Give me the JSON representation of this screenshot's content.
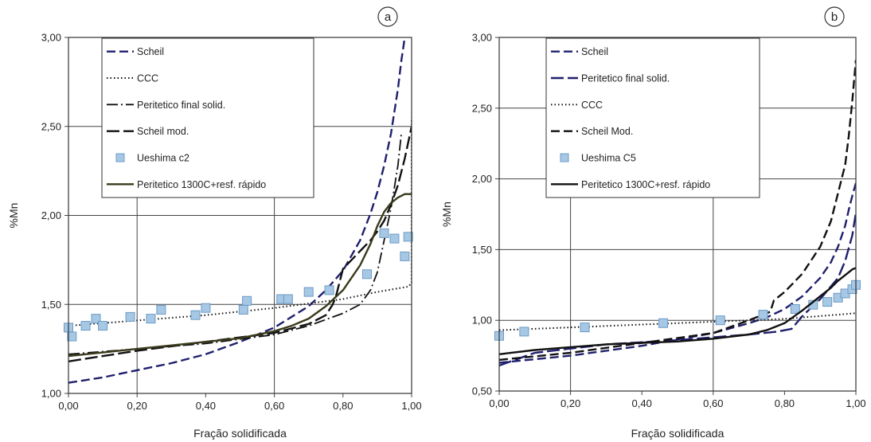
{
  "chart_data": [
    {
      "type": "line",
      "badge": "a",
      "xlabel": "Fração solidificada",
      "ylabel": "%Mn",
      "xlim": [
        0,
        1
      ],
      "ylim": [
        1.0,
        3.0
      ],
      "xticks": [
        "0,00",
        "0,20",
        "0,40",
        "0,60",
        "0,80",
        "1,00"
      ],
      "yticks": [
        "1,00",
        "1,50",
        "2,00",
        "2,50",
        "3,00"
      ],
      "grid": true,
      "legend_placement": "top-left",
      "series": [
        {
          "name": "Scheil",
          "style": "dash",
          "color": "#1f1f6e",
          "x": [
            0,
            0.1,
            0.2,
            0.3,
            0.4,
            0.5,
            0.6,
            0.7,
            0.75,
            0.8,
            0.85,
            0.88,
            0.9,
            0.92,
            0.94,
            0.96,
            0.97,
            0.98
          ],
          "y": [
            1.06,
            1.09,
            1.13,
            1.17,
            1.22,
            1.29,
            1.37,
            1.49,
            1.58,
            1.69,
            1.86,
            2.01,
            2.13,
            2.28,
            2.46,
            2.71,
            2.87,
            3.0
          ]
        },
        {
          "name": "CCC",
          "style": "dot",
          "color": "#111111",
          "x": [
            0,
            0.2,
            0.4,
            0.6,
            0.8,
            0.9,
            0.99,
            1.0,
            1.0
          ],
          "y": [
            1.38,
            1.41,
            1.44,
            1.48,
            1.53,
            1.57,
            1.6,
            1.62,
            2.55
          ]
        },
        {
          "name": "Peritetico final solid.",
          "style": "dashdot",
          "color": "#111111",
          "x": [
            0,
            0.2,
            0.4,
            0.6,
            0.7,
            0.8,
            0.85,
            0.85,
            0.88,
            0.9,
            0.92,
            0.94,
            0.96,
            0.97
          ],
          "y": [
            1.22,
            1.25,
            1.28,
            1.33,
            1.38,
            1.45,
            1.5,
            1.5,
            1.58,
            1.68,
            1.86,
            2.04,
            2.28,
            2.46
          ]
        },
        {
          "name": "Scheil mod.",
          "style": "longdash",
          "color": "#111111",
          "x": [
            0,
            0.2,
            0.4,
            0.6,
            0.7,
            0.75,
            0.77,
            0.78,
            0.8,
            0.85,
            0.88,
            0.9,
            0.92,
            0.94,
            0.96,
            0.98,
            1.0
          ],
          "y": [
            1.18,
            1.24,
            1.29,
            1.34,
            1.39,
            1.44,
            1.5,
            1.55,
            1.7,
            1.8,
            1.86,
            1.91,
            1.97,
            2.06,
            2.17,
            2.32,
            2.5
          ]
        },
        {
          "name": "Ueshima c2",
          "style": "marker",
          "color": "#a6c8e4",
          "x": [
            0,
            0.01,
            0.05,
            0.08,
            0.1,
            0.18,
            0.24,
            0.27,
            0.37,
            0.4,
            0.51,
            0.52,
            0.62,
            0.64,
            0.7,
            0.76,
            0.87,
            0.92,
            0.95,
            0.98,
            0.99
          ],
          "y": [
            1.37,
            1.32,
            1.38,
            1.42,
            1.38,
            1.43,
            1.42,
            1.47,
            1.44,
            1.48,
            1.47,
            1.52,
            1.53,
            1.53,
            1.57,
            1.58,
            1.67,
            1.9,
            1.87,
            1.77,
            1.88
          ]
        },
        {
          "name": "Peritetico 1300C+resf. rápido",
          "style": "solid",
          "color": "#3a3a1c",
          "x": [
            0,
            0.1,
            0.2,
            0.3,
            0.4,
            0.5,
            0.6,
            0.65,
            0.7,
            0.75,
            0.8,
            0.85,
            0.88,
            0.9,
            0.92,
            0.94,
            0.96,
            0.98,
            1.0
          ],
          "y": [
            1.21,
            1.23,
            1.25,
            1.27,
            1.29,
            1.31,
            1.35,
            1.38,
            1.42,
            1.49,
            1.58,
            1.72,
            1.84,
            1.94,
            2.02,
            2.07,
            2.1,
            2.12,
            2.12
          ]
        }
      ]
    },
    {
      "type": "line",
      "badge": "b",
      "xlabel": "Fração solidificada",
      "ylabel": "%Mn",
      "xlim": [
        0,
        1
      ],
      "ylim": [
        0.5,
        3.0
      ],
      "xticks": [
        "0,00",
        "0,20",
        "0,40",
        "0,60",
        "0,80",
        "1,00"
      ],
      "yticks": [
        "0,50",
        "1,00",
        "1,50",
        "2,00",
        "2,50",
        "3,00"
      ],
      "grid": true,
      "legend_placement": "top-left",
      "series": [
        {
          "name": "Scheil",
          "style": "dash",
          "color": "#1f1f6e",
          "x": [
            0,
            0.2,
            0.4,
            0.6,
            0.7,
            0.75,
            0.8,
            0.85,
            0.9,
            0.93,
            0.95,
            0.97,
            0.98,
            0.99,
            1.0
          ],
          "y": [
            0.7,
            0.75,
            0.82,
            0.91,
            0.98,
            1.02,
            1.08,
            1.17,
            1.3,
            1.41,
            1.52,
            1.67,
            1.78,
            1.88,
            1.97
          ]
        },
        {
          "name": "Peritetico final solid.",
          "style": "longdash",
          "color": "#1f1f6e",
          "x": [
            0,
            0.1,
            0.3,
            0.5,
            0.7,
            0.78,
            0.82,
            0.85,
            0.9,
            0.95,
            0.97,
            0.99,
            1.0
          ],
          "y": [
            0.68,
            0.77,
            0.83,
            0.86,
            0.9,
            0.92,
            0.94,
            1.03,
            1.15,
            1.3,
            1.42,
            1.6,
            1.76
          ]
        },
        {
          "name": "CCC",
          "style": "dot",
          "color": "#111111",
          "x": [
            0,
            0.2,
            0.4,
            0.6,
            0.8,
            1.0
          ],
          "y": [
            0.93,
            0.95,
            0.97,
            0.99,
            1.01,
            1.05
          ]
        },
        {
          "name": "Scheil Mod.",
          "style": "dash",
          "color": "#111111",
          "x": [
            0,
            0.2,
            0.4,
            0.6,
            0.7,
            0.76,
            0.77,
            0.8,
            0.85,
            0.9,
            0.93,
            0.95,
            0.97,
            0.98,
            0.99,
            1.0
          ],
          "y": [
            0.72,
            0.77,
            0.84,
            0.91,
            1.0,
            1.06,
            1.14,
            1.2,
            1.33,
            1.52,
            1.7,
            1.9,
            2.1,
            2.3,
            2.55,
            2.84
          ]
        },
        {
          "name": "Ueshima C5",
          "style": "marker",
          "color": "#a6c8e4",
          "x": [
            0,
            0.07,
            0.24,
            0.46,
            0.62,
            0.74,
            0.83,
            0.88,
            0.92,
            0.95,
            0.97,
            0.99,
            1.0
          ],
          "y": [
            0.89,
            0.92,
            0.95,
            0.98,
            1.0,
            1.04,
            1.08,
            1.11,
            1.13,
            1.16,
            1.19,
            1.22,
            1.25
          ]
        },
        {
          "name": "Peritetico 1300C+resf. rápido",
          "style": "solid",
          "color": "#111111",
          "x": [
            0,
            0.1,
            0.2,
            0.3,
            0.4,
            0.5,
            0.6,
            0.7,
            0.75,
            0.8,
            0.85,
            0.9,
            0.93,
            0.95,
            0.97,
            0.99,
            1.0
          ],
          "y": [
            0.76,
            0.79,
            0.81,
            0.83,
            0.84,
            0.85,
            0.87,
            0.9,
            0.93,
            0.98,
            1.07,
            1.17,
            1.23,
            1.28,
            1.32,
            1.36,
            1.37
          ]
        }
      ]
    }
  ]
}
